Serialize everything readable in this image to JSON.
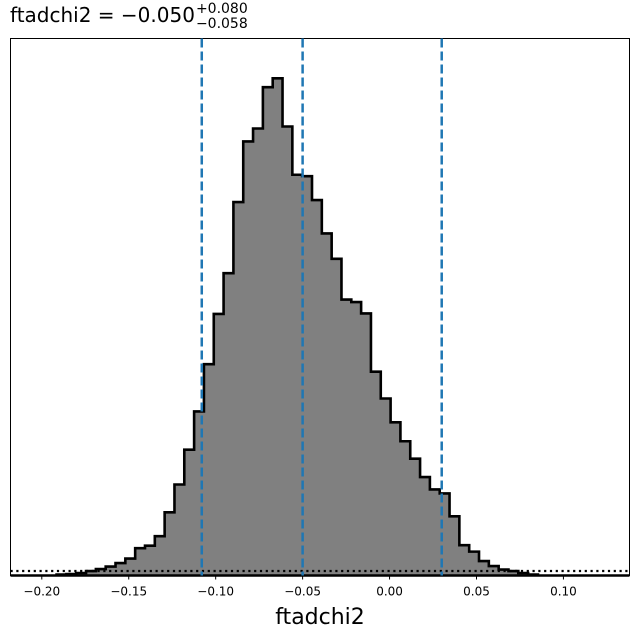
{
  "chart_data": {
    "type": "histogram",
    "title": {
      "param": "ftadchi2",
      "equals": " = ",
      "median": "−0.050",
      "upper_err": "+0.080",
      "lower_err": "−0.058"
    },
    "xlabel": "ftadchi2",
    "ylabel": "",
    "xlim": [
      -0.218,
      0.138
    ],
    "ylim": [
      0,
      1.08
    ],
    "x_ticks": [
      -0.2,
      -0.15,
      -0.1,
      -0.05,
      0.0,
      0.05,
      0.1
    ],
    "x_tick_labels": [
      "−0.20",
      "−0.15",
      "−0.10",
      "−0.05",
      "0.00",
      "0.05",
      "0.10"
    ],
    "y_ticks": [],
    "bin_start": -0.1915,
    "bin_width": 0.00565,
    "counts": [
      0.002,
      0.003,
      0.005,
      0.009,
      0.013,
      0.018,
      0.025,
      0.034,
      0.055,
      0.06,
      0.079,
      0.127,
      0.183,
      0.253,
      0.33,
      0.425,
      0.526,
      0.608,
      0.751,
      0.873,
      0.899,
      0.982,
      1.0,
      0.903,
      0.806,
      0.803,
      0.755,
      0.688,
      0.637,
      0.555,
      0.55,
      0.527,
      0.41,
      0.356,
      0.308,
      0.27,
      0.235,
      0.198,
      0.173,
      0.165,
      0.119,
      0.061,
      0.048,
      0.029,
      0.019,
      0.012,
      0.009,
      0.005,
      0.002
    ],
    "bar_color": "#808080",
    "edge_color": "#000000",
    "vlines": [
      {
        "x": -0.108,
        "color": "#1f77b4",
        "style": "dashed"
      },
      {
        "x": -0.05,
        "color": "#1f77b4",
        "style": "dashed"
      },
      {
        "x": 0.03,
        "color": "#1f77b4",
        "style": "dashed"
      }
    ],
    "hline": {
      "y": 0.009,
      "color": "#000000",
      "style": "dotted"
    }
  }
}
